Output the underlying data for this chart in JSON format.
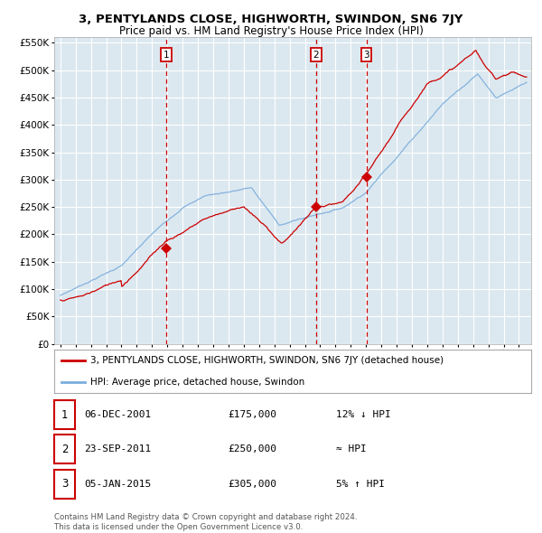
{
  "title": "3, PENTYLANDS CLOSE, HIGHWORTH, SWINDON, SN6 7JY",
  "subtitle": "Price paid vs. HM Land Registry's House Price Index (HPI)",
  "legend_line1": "3, PENTYLANDS CLOSE, HIGHWORTH, SWINDON, SN6 7JY (detached house)",
  "legend_line2": "HPI: Average price, detached house, Swindon",
  "footer1": "Contains HM Land Registry data © Crown copyright and database right 2024.",
  "footer2": "This data is licensed under the Open Government Licence v3.0.",
  "sale_events": [
    {
      "num": 1,
      "date": "06-DEC-2001",
      "price": 175000,
      "note": "12% ↓ HPI",
      "year": 2001.92
    },
    {
      "num": 2,
      "date": "23-SEP-2011",
      "price": 250000,
      "note": "≈ HPI",
      "year": 2011.73
    },
    {
      "num": 3,
      "date": "05-JAN-2015",
      "price": 305000,
      "note": "5% ↑ HPI",
      "year": 2015.02
    }
  ],
  "hpi_color": "#7aaddc",
  "price_color": "#cc0000",
  "marker_color": "#cc0000",
  "bg_color": "#dce8f0",
  "grid_color": "#ffffff",
  "dashed_line_color": "#cc0000",
  "ylim": [
    0,
    560000
  ],
  "yticks": [
    0,
    50000,
    100000,
    150000,
    200000,
    250000,
    300000,
    350000,
    400000,
    450000,
    500000,
    550000
  ],
  "xlim_start": 1994.6,
  "xlim_end": 2025.8,
  "xtick_years": [
    1995,
    1996,
    1997,
    1998,
    1999,
    2000,
    2001,
    2002,
    2003,
    2004,
    2005,
    2006,
    2007,
    2008,
    2009,
    2010,
    2011,
    2012,
    2013,
    2014,
    2015,
    2016,
    2017,
    2018,
    2019,
    2020,
    2021,
    2022,
    2023,
    2024,
    2025
  ]
}
